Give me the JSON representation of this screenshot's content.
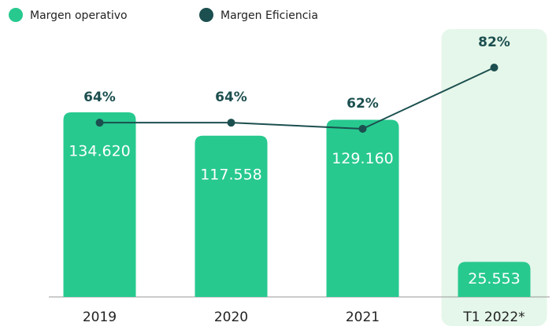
{
  "chart_data": {
    "type": "bar-line",
    "categories": [
      "2019",
      "2020",
      "2021",
      "T1 2022*"
    ],
    "series": [
      {
        "name": "Margen operativo",
        "type": "bar",
        "color": "#27c98f",
        "values": [
          134620,
          117558,
          129160,
          25553
        ],
        "value_labels": [
          "134.620",
          "117.558",
          "129.160",
          "25.553"
        ]
      },
      {
        "name": "Margen Eficiencia",
        "type": "line",
        "axis": "y2",
        "color": "#1c4f4f",
        "values": [
          64,
          64,
          62,
          82
        ],
        "value_labels": [
          "64%",
          "64%",
          "62%",
          "82%"
        ]
      }
    ],
    "ylim": [
      0,
      193600
    ],
    "y2lim": [
      7.1,
      93.8
    ],
    "highlight_color": "#e5f7ea"
  }
}
